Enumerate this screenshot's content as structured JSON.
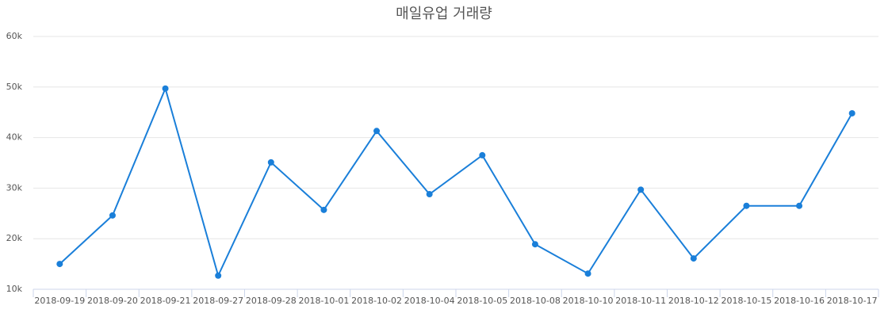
{
  "chart_data": {
    "type": "line",
    "title": "매일유업 거래량",
    "categories": [
      "2018-09-19",
      "2018-09-20",
      "2018-09-21",
      "2018-09-27",
      "2018-09-28",
      "2018-10-01",
      "2018-10-02",
      "2018-10-04",
      "2018-10-05",
      "2018-10-08",
      "2018-10-10",
      "2018-10-11",
      "2018-10-12",
      "2018-10-15",
      "2018-10-16",
      "2018-10-17"
    ],
    "series": [
      {
        "color": "#1a7fd9",
        "values": [
          15000,
          24600,
          49700,
          12700,
          35100,
          25700,
          41300,
          28800,
          36500,
          18900,
          13100,
          29700,
          16100,
          26500,
          26500,
          44800
        ]
      }
    ],
    "ylim": [
      10000,
      60000
    ],
    "yticks": [
      {
        "value": 10000,
        "label": "10k"
      },
      {
        "value": 20000,
        "label": "20k"
      },
      {
        "value": 30000,
        "label": "30k"
      },
      {
        "value": 40000,
        "label": "40k"
      },
      {
        "value": 50000,
        "label": "50k"
      },
      {
        "value": 60000,
        "label": "60k"
      }
    ],
    "grid": true
  }
}
